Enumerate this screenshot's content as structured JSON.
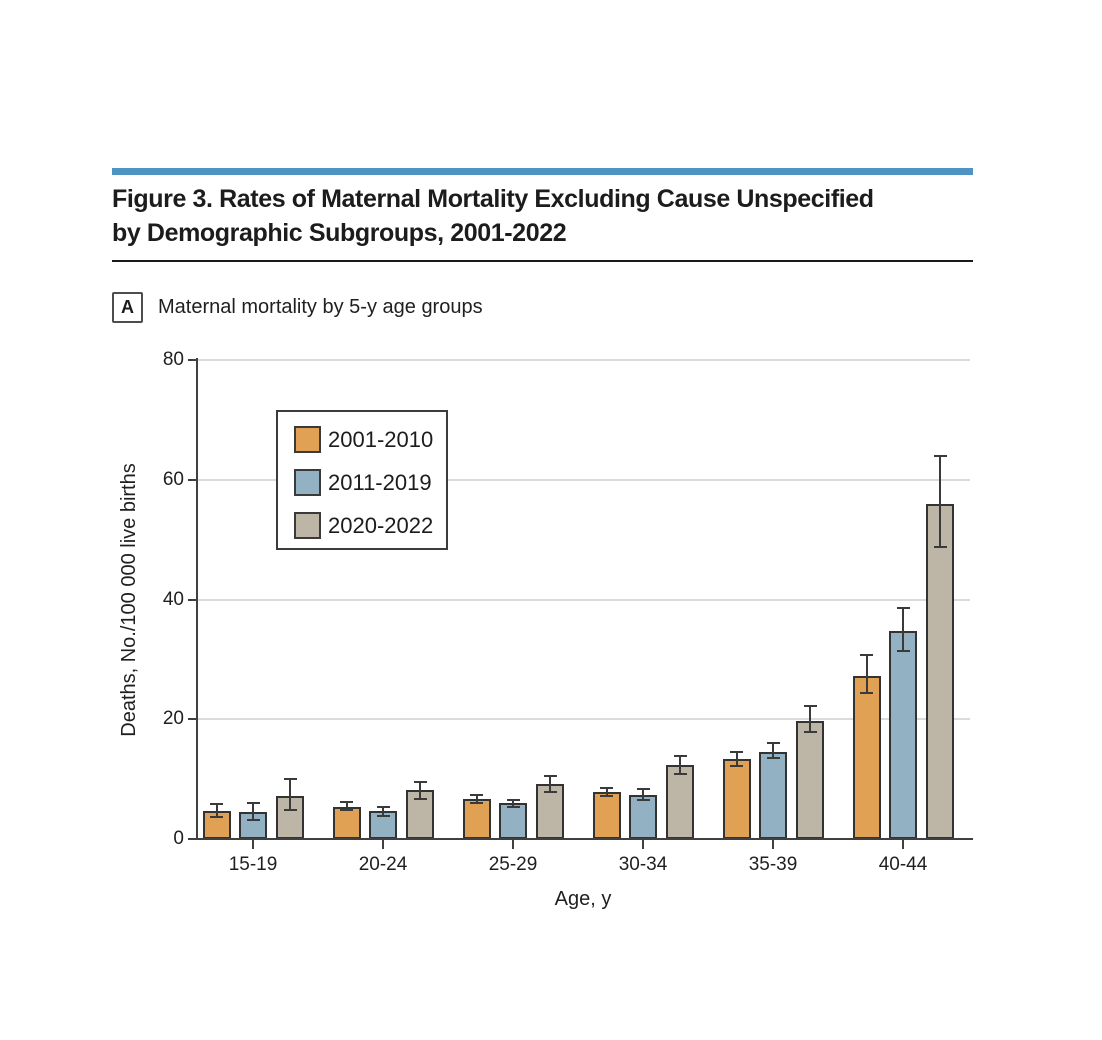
{
  "figure": {
    "title_line1": "Figure 3. Rates of Maternal Mortality Excluding Cause Unspecified",
    "title_line2": "by Demographic Subgroups, 2001-2022",
    "panel_label": "A",
    "panel_subtitle": "Maternal mortality by 5-y age groups",
    "accent_rule_color": "#4e93c1"
  },
  "chart_data": {
    "type": "bar",
    "title": "Maternal mortality by 5-y age groups",
    "categories": [
      "15-19",
      "20-24",
      "25-29",
      "30-34",
      "35-39",
      "40-44"
    ],
    "series": [
      {
        "name": "2001-2010",
        "color": "#e1a155",
        "values": [
          4.7,
          5.4,
          6.6,
          7.9,
          13.3,
          27.2
        ],
        "ci_low": [
          3.7,
          4.8,
          6.0,
          7.1,
          12.2,
          24.4
        ],
        "ci_high": [
          5.8,
          6.1,
          7.4,
          8.6,
          14.6,
          30.8
        ]
      },
      {
        "name": "2011-2019",
        "color": "#92b2c4",
        "values": [
          4.5,
          4.6,
          6.0,
          7.4,
          14.5,
          34.7
        ],
        "ci_low": [
          3.2,
          3.8,
          5.3,
          6.5,
          13.5,
          31.4
        ],
        "ci_high": [
          6.0,
          5.3,
          6.5,
          8.4,
          16.0,
          38.6
        ]
      },
      {
        "name": "2020-2022",
        "color": "#bdb5a6",
        "values": [
          7.2,
          8.2,
          9.2,
          12.3,
          19.7,
          56.0
        ],
        "ci_low": [
          4.8,
          6.6,
          7.9,
          10.8,
          17.8,
          48.8
        ],
        "ci_high": [
          10.1,
          9.6,
          10.5,
          13.8,
          22.2,
          64.0
        ]
      }
    ],
    "xlabel": "Age, y",
    "ylabel": "Deaths, No./100 000 live births",
    "ylim": [
      0,
      80
    ],
    "yticks": [
      0,
      20,
      40,
      60,
      80
    ],
    "grid": "horizontal",
    "error_bars": true,
    "legend_position": "upper-left-inside"
  }
}
